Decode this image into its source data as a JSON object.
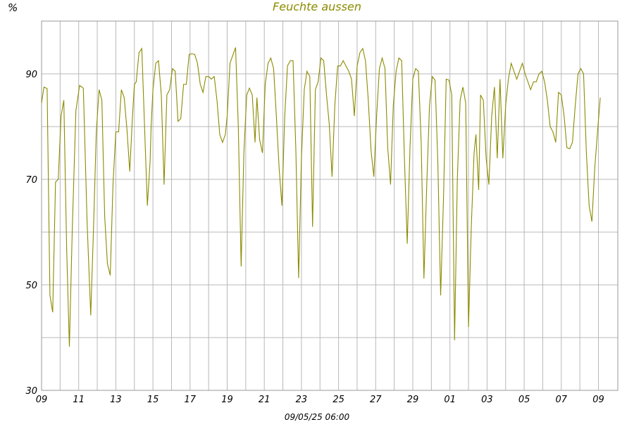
{
  "chart_data": {
    "type": "line",
    "title": "Feuchte aussen",
    "ylabel": "%",
    "footer": "09/05/25 06:00",
    "ylim": [
      30,
      100
    ],
    "xlim": [
      0,
      31
    ],
    "y_ticks": [
      30,
      40,
      50,
      60,
      70,
      80,
      90,
      100
    ],
    "y_tick_labels": [
      30,
      50,
      70,
      90
    ],
    "x_tick_labels": [
      "09",
      "11",
      "13",
      "15",
      "17",
      "19",
      "21",
      "23",
      "25",
      "27",
      "29",
      "01",
      "03",
      "05",
      "07",
      "09"
    ],
    "x_tick_days": [
      0,
      2,
      4,
      6,
      8,
      10,
      12,
      14,
      16,
      18,
      20,
      22,
      24,
      26,
      28,
      30
    ],
    "x_grid_days": [
      1,
      3,
      5,
      7,
      9,
      11,
      13,
      15,
      17,
      19,
      21,
      23,
      25,
      27,
      29
    ],
    "grid": true,
    "colors": {
      "line": "#8b8b00",
      "title": "#8b8b00",
      "grid": "#b8b8b8"
    },
    "series": [
      {
        "x": [
          0.0,
          0.13,
          0.3,
          0.45,
          0.6,
          0.75,
          0.9,
          1.05,
          1.2,
          1.35,
          1.5,
          1.65,
          1.85,
          2.05,
          2.25,
          2.45,
          2.65,
          2.8,
          2.95,
          3.1,
          3.25,
          3.4,
          3.55,
          3.7,
          3.85,
          4.0,
          4.15,
          4.3,
          4.45,
          4.6,
          4.75,
          4.9,
          5.0,
          5.1,
          5.25,
          5.4,
          5.55,
          5.7,
          5.85,
          5.9,
          6.0,
          6.15,
          6.3,
          6.45,
          6.6,
          6.75,
          6.9,
          7.05,
          7.2,
          7.35,
          7.5,
          7.65,
          7.8,
          7.95,
          8.1,
          8.25,
          8.4,
          8.55,
          8.7,
          8.85,
          9.0,
          9.15,
          9.3,
          9.45,
          9.6,
          9.75,
          9.9,
          10.0,
          10.15,
          10.3,
          10.45,
          10.6,
          10.75,
          10.9,
          11.05,
          11.2,
          11.35,
          11.5,
          11.6,
          11.75,
          11.9,
          12.05,
          12.2,
          12.35,
          12.5,
          12.65,
          12.8,
          12.95,
          13.1,
          13.25,
          13.4,
          13.55,
          13.7,
          13.85,
          14.0,
          14.15,
          14.3,
          14.45,
          14.6,
          14.75,
          14.9,
          15.05,
          15.2,
          15.35,
          15.5,
          15.65,
          15.8,
          15.95,
          16.1,
          16.25,
          16.4,
          16.55,
          16.7,
          16.85,
          17.0,
          17.15,
          17.3,
          17.45,
          17.6,
          17.75,
          17.9,
          18.05,
          18.2,
          18.35,
          18.5,
          18.65,
          18.8,
          18.95,
          19.1,
          19.25,
          19.4,
          19.55,
          19.7,
          19.85,
          20.0,
          20.15,
          20.3,
          20.45,
          20.6,
          20.75,
          20.9,
          21.05,
          21.2,
          21.35,
          21.5,
          21.65,
          21.8,
          21.95,
          22.1,
          22.25,
          22.4,
          22.55,
          22.7,
          22.85,
          23.0,
          23.15,
          23.3,
          23.4,
          23.55,
          23.65,
          23.8,
          23.95,
          24.1,
          24.25,
          24.4,
          24.55,
          24.7,
          24.85,
          25.0,
          25.15,
          25.3,
          25.45,
          25.6,
          25.75,
          25.9,
          26.05,
          26.2,
          26.35,
          26.5,
          26.65,
          26.8,
          26.95,
          27.1,
          27.25,
          27.4,
          27.55,
          27.7,
          27.85,
          28.0,
          28.15,
          28.3,
          28.45,
          28.6,
          28.75,
          28.9,
          29.05,
          29.2,
          29.35,
          29.5,
          29.65,
          29.8,
          29.95,
          30.1
        ],
        "y": [
          84.5,
          87.5,
          87.2,
          48,
          44.8,
          69.5,
          70,
          82,
          85,
          57,
          38.3,
          60,
          83,
          87.8,
          87.3,
          62,
          44.2,
          61,
          79,
          87,
          85,
          63,
          54,
          51.8,
          69,
          79,
          79,
          87,
          85.5,
          79.5,
          71.5,
          82,
          88,
          88.5,
          94,
          94.8,
          80,
          65,
          73.5,
          80,
          87,
          92,
          92.5,
          86,
          69,
          86,
          87,
          91,
          90.5,
          81,
          81.5,
          88,
          88,
          93.7,
          93.8,
          93.7,
          92,
          88,
          86.5,
          89.5,
          89.5,
          89,
          89.5,
          85,
          78.5,
          77,
          78.5,
          82,
          92,
          93.5,
          95,
          80,
          53.5,
          75,
          86,
          87.3,
          86,
          77,
          85.5,
          77.5,
          75,
          88,
          92,
          93,
          91,
          82,
          72,
          65,
          82,
          91.5,
          92.5,
          92.5,
          75.5,
          51.3,
          74,
          87,
          90.5,
          89.5,
          61,
          87,
          88.5,
          93,
          92.5,
          86,
          80.5,
          70.5,
          84,
          91.5,
          91.5,
          92.5,
          91.5,
          90.5,
          89,
          82,
          91.5,
          94,
          94.8,
          92.5,
          85,
          75.5,
          70.5,
          82,
          91,
          93,
          91,
          76,
          69,
          84,
          90.5,
          93,
          92.5,
          74,
          57.8,
          76,
          89,
          91,
          90.5,
          77,
          51.2,
          69,
          84,
          89.5,
          88.8,
          73,
          48,
          66,
          89,
          88.8,
          86,
          39.5,
          70,
          85,
          87.5,
          84.5,
          42,
          61,
          75,
          78.5,
          68,
          86,
          85,
          74,
          69,
          82,
          87.5,
          74,
          89,
          74,
          84,
          89,
          92,
          90.5,
          89,
          90.5,
          92,
          90,
          88.5,
          87,
          88.5,
          88.5,
          90,
          90.5,
          88.5,
          85,
          80,
          79,
          77,
          86.5,
          86,
          82,
          76,
          75.8,
          77,
          84,
          90,
          91,
          90,
          75,
          65,
          62,
          72,
          79,
          85.5
        ]
      }
    ]
  }
}
